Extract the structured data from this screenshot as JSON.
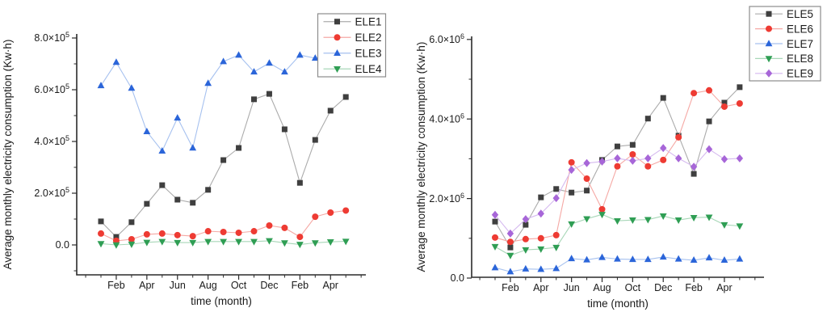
{
  "figure": {
    "description": "Two line charts of average monthly electricity consumption",
    "background": "#ffffff",
    "axis_color": "#2b2b2b",
    "legend_border_color": "#8c8c8c",
    "months": [
      "Jan",
      "Feb",
      "Mar",
      "Apr",
      "May",
      "Jun",
      "Jul",
      "Aug",
      "Sep",
      "Oct",
      "Nov",
      "Dec",
      "Jan",
      "Feb",
      "Mar",
      "Apr",
      "May"
    ]
  },
  "chart_data": [
    {
      "type": "line",
      "title": "",
      "xlabel": "time (month)",
      "ylabel": "Average monthly electricity consumption (Kw·h)",
      "x": [
        "Jan",
        "Feb",
        "Mar",
        "Apr",
        "May",
        "Jun",
        "Jul",
        "Aug",
        "Sep",
        "Oct",
        "Nov",
        "Dec",
        "Jan",
        "Feb",
        "Mar",
        "Apr",
        "May"
      ],
      "x_tick_labels": [
        "Feb",
        "Apr",
        "Jun",
        "Aug",
        "Oct",
        "Dec",
        "Feb",
        "Apr"
      ],
      "y_ticks": [
        0,
        200000,
        400000,
        600000,
        800000
      ],
      "y_tick_labels": [
        "0.0",
        "2.0×10⁵",
        "4.0×10⁵",
        "6.0×10⁵",
        "8.0×10⁵"
      ],
      "ylim": [
        -116000,
        816000
      ],
      "grid": false,
      "legend_position": "top-right",
      "series": [
        {
          "name": "ELE1",
          "marker": "square",
          "marker_color": "#3f3f3f",
          "line_color": "#ababab",
          "values": [
            91000,
            31000,
            88000,
            159000,
            231000,
            175000,
            163000,
            213000,
            328000,
            375000,
            563000,
            584000,
            447000,
            240000,
            406000,
            519000,
            572000
          ]
        },
        {
          "name": "ELE2",
          "marker": "circle",
          "marker_color": "#ee3b33",
          "line_color": "#f5a8a4",
          "values": [
            44000,
            16000,
            22000,
            41000,
            44000,
            38000,
            34000,
            53000,
            50000,
            47000,
            53000,
            75000,
            66000,
            31000,
            109000,
            125000,
            133000
          ]
        },
        {
          "name": "ELE3",
          "marker": "triangle-up",
          "marker_color": "#2b65d9",
          "line_color": "#a6c1ef",
          "values": [
            616000,
            706000,
            606000,
            438000,
            363000,
            491000,
            375000,
            625000,
            709000,
            734000,
            669000,
            703000,
            669000,
            734000,
            722000,
            730000,
            728000
          ]
        },
        {
          "name": "ELE4",
          "marker": "triangle-down",
          "marker_color": "#2f9e54",
          "line_color": "#a8d7b8",
          "values": [
            5000,
            0,
            3000,
            10000,
            13000,
            9000,
            9000,
            13000,
            13000,
            13000,
            13000,
            16000,
            8000,
            2000,
            8000,
            12000,
            14000
          ]
        }
      ]
    },
    {
      "type": "line",
      "title": "",
      "xlabel": "time (month)",
      "ylabel": "Average monthly electricity consumption (Kw·h)",
      "x": [
        "Jan",
        "Feb",
        "Mar",
        "Apr",
        "May",
        "Jun",
        "Jul",
        "Aug",
        "Sep",
        "Oct",
        "Nov",
        "Dec",
        "Jan",
        "Feb",
        "Mar",
        "Apr",
        "May"
      ],
      "x_tick_labels": [
        "Feb",
        "Apr",
        "Jun",
        "Aug",
        "Oct",
        "Dec",
        "Feb",
        "Apr"
      ],
      "y_ticks": [
        0,
        2000000,
        4000000,
        6000000
      ],
      "y_tick_labels": [
        "0.0",
        "2.0×10⁶",
        "4.0×10⁶",
        "6.0×10⁶"
      ],
      "ylim": [
        -20000,
        6080000
      ],
      "grid": false,
      "legend_position": "top-right",
      "series": [
        {
          "name": "ELE5",
          "marker": "square",
          "marker_color": "#3f3f3f",
          "line_color": "#ababab",
          "values": [
            1420000,
            770000,
            1340000,
            2030000,
            2240000,
            2150000,
            2200000,
            2970000,
            3310000,
            3350000,
            4010000,
            4530000,
            3580000,
            2620000,
            3940000,
            4410000,
            4800000
          ]
        },
        {
          "name": "ELE6",
          "marker": "circle",
          "marker_color": "#ee3b33",
          "line_color": "#f5a8a4",
          "values": [
            1020000,
            910000,
            980000,
            1000000,
            1080000,
            2910000,
            2500000,
            1730000,
            2810000,
            3110000,
            2810000,
            2970000,
            3540000,
            4650000,
            4720000,
            4310000,
            4390000
          ]
        },
        {
          "name": "ELE7",
          "marker": "triangle-up",
          "marker_color": "#2b65d9",
          "line_color": "#a6c1ef",
          "values": [
            260000,
            160000,
            230000,
            220000,
            240000,
            490000,
            460000,
            520000,
            480000,
            470000,
            470000,
            530000,
            480000,
            450000,
            510000,
            450000,
            480000
          ]
        },
        {
          "name": "ELE8",
          "marker": "triangle-down",
          "marker_color": "#2f9e54",
          "line_color": "#a8d7b8",
          "values": [
            790000,
            570000,
            710000,
            730000,
            770000,
            1360000,
            1490000,
            1600000,
            1440000,
            1460000,
            1470000,
            1560000,
            1460000,
            1520000,
            1530000,
            1340000,
            1310000
          ]
        },
        {
          "name": "ELE9",
          "marker": "diamond",
          "marker_color": "#a766d8",
          "line_color": "#d5b9ef",
          "values": [
            1590000,
            1120000,
            1480000,
            1620000,
            2010000,
            2720000,
            2890000,
            2930000,
            3010000,
            2950000,
            3010000,
            3270000,
            3010000,
            2800000,
            3240000,
            2990000,
            3010000
          ]
        }
      ]
    }
  ]
}
